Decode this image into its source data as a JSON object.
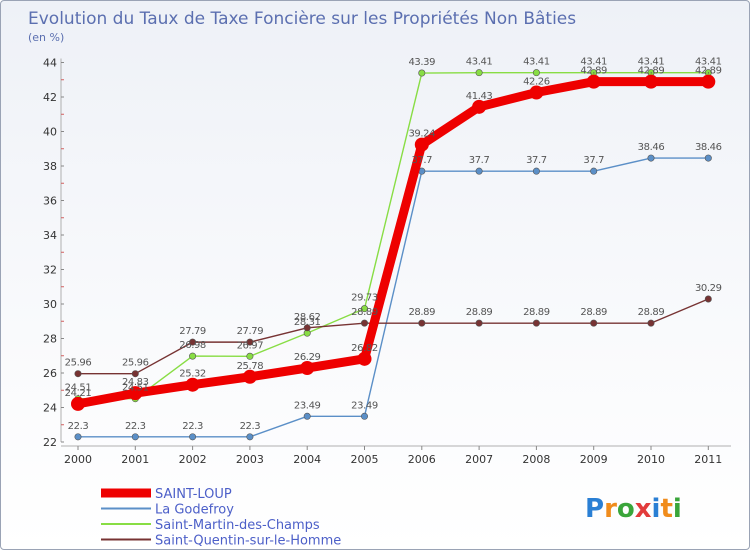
{
  "chart_data": {
    "type": "line",
    "title": "Evolution du Taux de Taxe Foncière sur les Propriétés Non Bâties",
    "subtitle": "(en %)",
    "xlabel": "",
    "ylabel": "(en %)",
    "x": [
      "2000",
      "2001",
      "2002",
      "2003",
      "2004",
      "2005",
      "2006",
      "2007",
      "2008",
      "2009",
      "2010",
      "2011"
    ],
    "ylim": [
      22,
      44
    ],
    "yticks": [
      "22",
      "24",
      "26",
      "28",
      "30",
      "32",
      "34",
      "36",
      "38",
      "40",
      "42",
      "44"
    ],
    "grid": false,
    "legend_position": "bottom-left",
    "series": [
      {
        "name": "SAINT-LOUP",
        "color": "#ee0000",
        "values": [
          24.21,
          24.83,
          25.32,
          25.78,
          26.29,
          26.82,
          39.24,
          41.43,
          42.26,
          42.89,
          42.89,
          42.89
        ],
        "labels": [
          "24.21",
          "24.83",
          "25.32",
          "25.78",
          "26.29",
          "26.82",
          "39.24",
          "41.43",
          "42.26",
          "42.89",
          "42.89",
          "42.89"
        ]
      },
      {
        "name": "La Godefroy",
        "color": "#5b8fc7",
        "values": [
          22.3,
          22.3,
          22.3,
          22.3,
          23.49,
          23.49,
          37.7,
          37.7,
          37.7,
          37.7,
          38.46,
          38.46
        ],
        "labels": [
          "22.3",
          "22.3",
          "22.3",
          "22.3",
          "23.49",
          "23.49",
          "37.7",
          "37.7",
          "37.7",
          "37.7",
          "38.46",
          "38.46"
        ]
      },
      {
        "name": "Saint-Martin-des-Champs",
        "color": "#88dd44",
        "values": [
          24.51,
          24.51,
          26.98,
          26.97,
          28.31,
          29.73,
          43.39,
          43.41,
          43.41,
          43.41,
          43.41,
          43.41
        ],
        "labels": [
          "24.51",
          "24.51",
          "26.98",
          "26.97",
          "28.31",
          "29.73",
          "43.39",
          "43.41",
          "43.41",
          "43.41",
          "43.41",
          "43.41"
        ]
      },
      {
        "name": "Saint-Quentin-sur-le-Homme",
        "color": "#773333",
        "values": [
          25.96,
          25.96,
          27.79,
          27.79,
          28.62,
          28.89,
          28.89,
          28.89,
          28.89,
          28.89,
          28.89,
          30.29
        ],
        "labels": [
          "25.96",
          "25.96",
          "27.79",
          "27.79",
          "28.62",
          "28.89",
          "28.89",
          "28.89",
          "28.89",
          "28.89",
          "28.89",
          "30.29"
        ]
      }
    ]
  },
  "brand": {
    "text": "Proxiti",
    "colors": [
      "#2a7fd4",
      "#f08c1c",
      "#3aa53a",
      "#e23b3b",
      "#2a7fd4",
      "#f08c1c",
      "#3aa53a"
    ]
  }
}
